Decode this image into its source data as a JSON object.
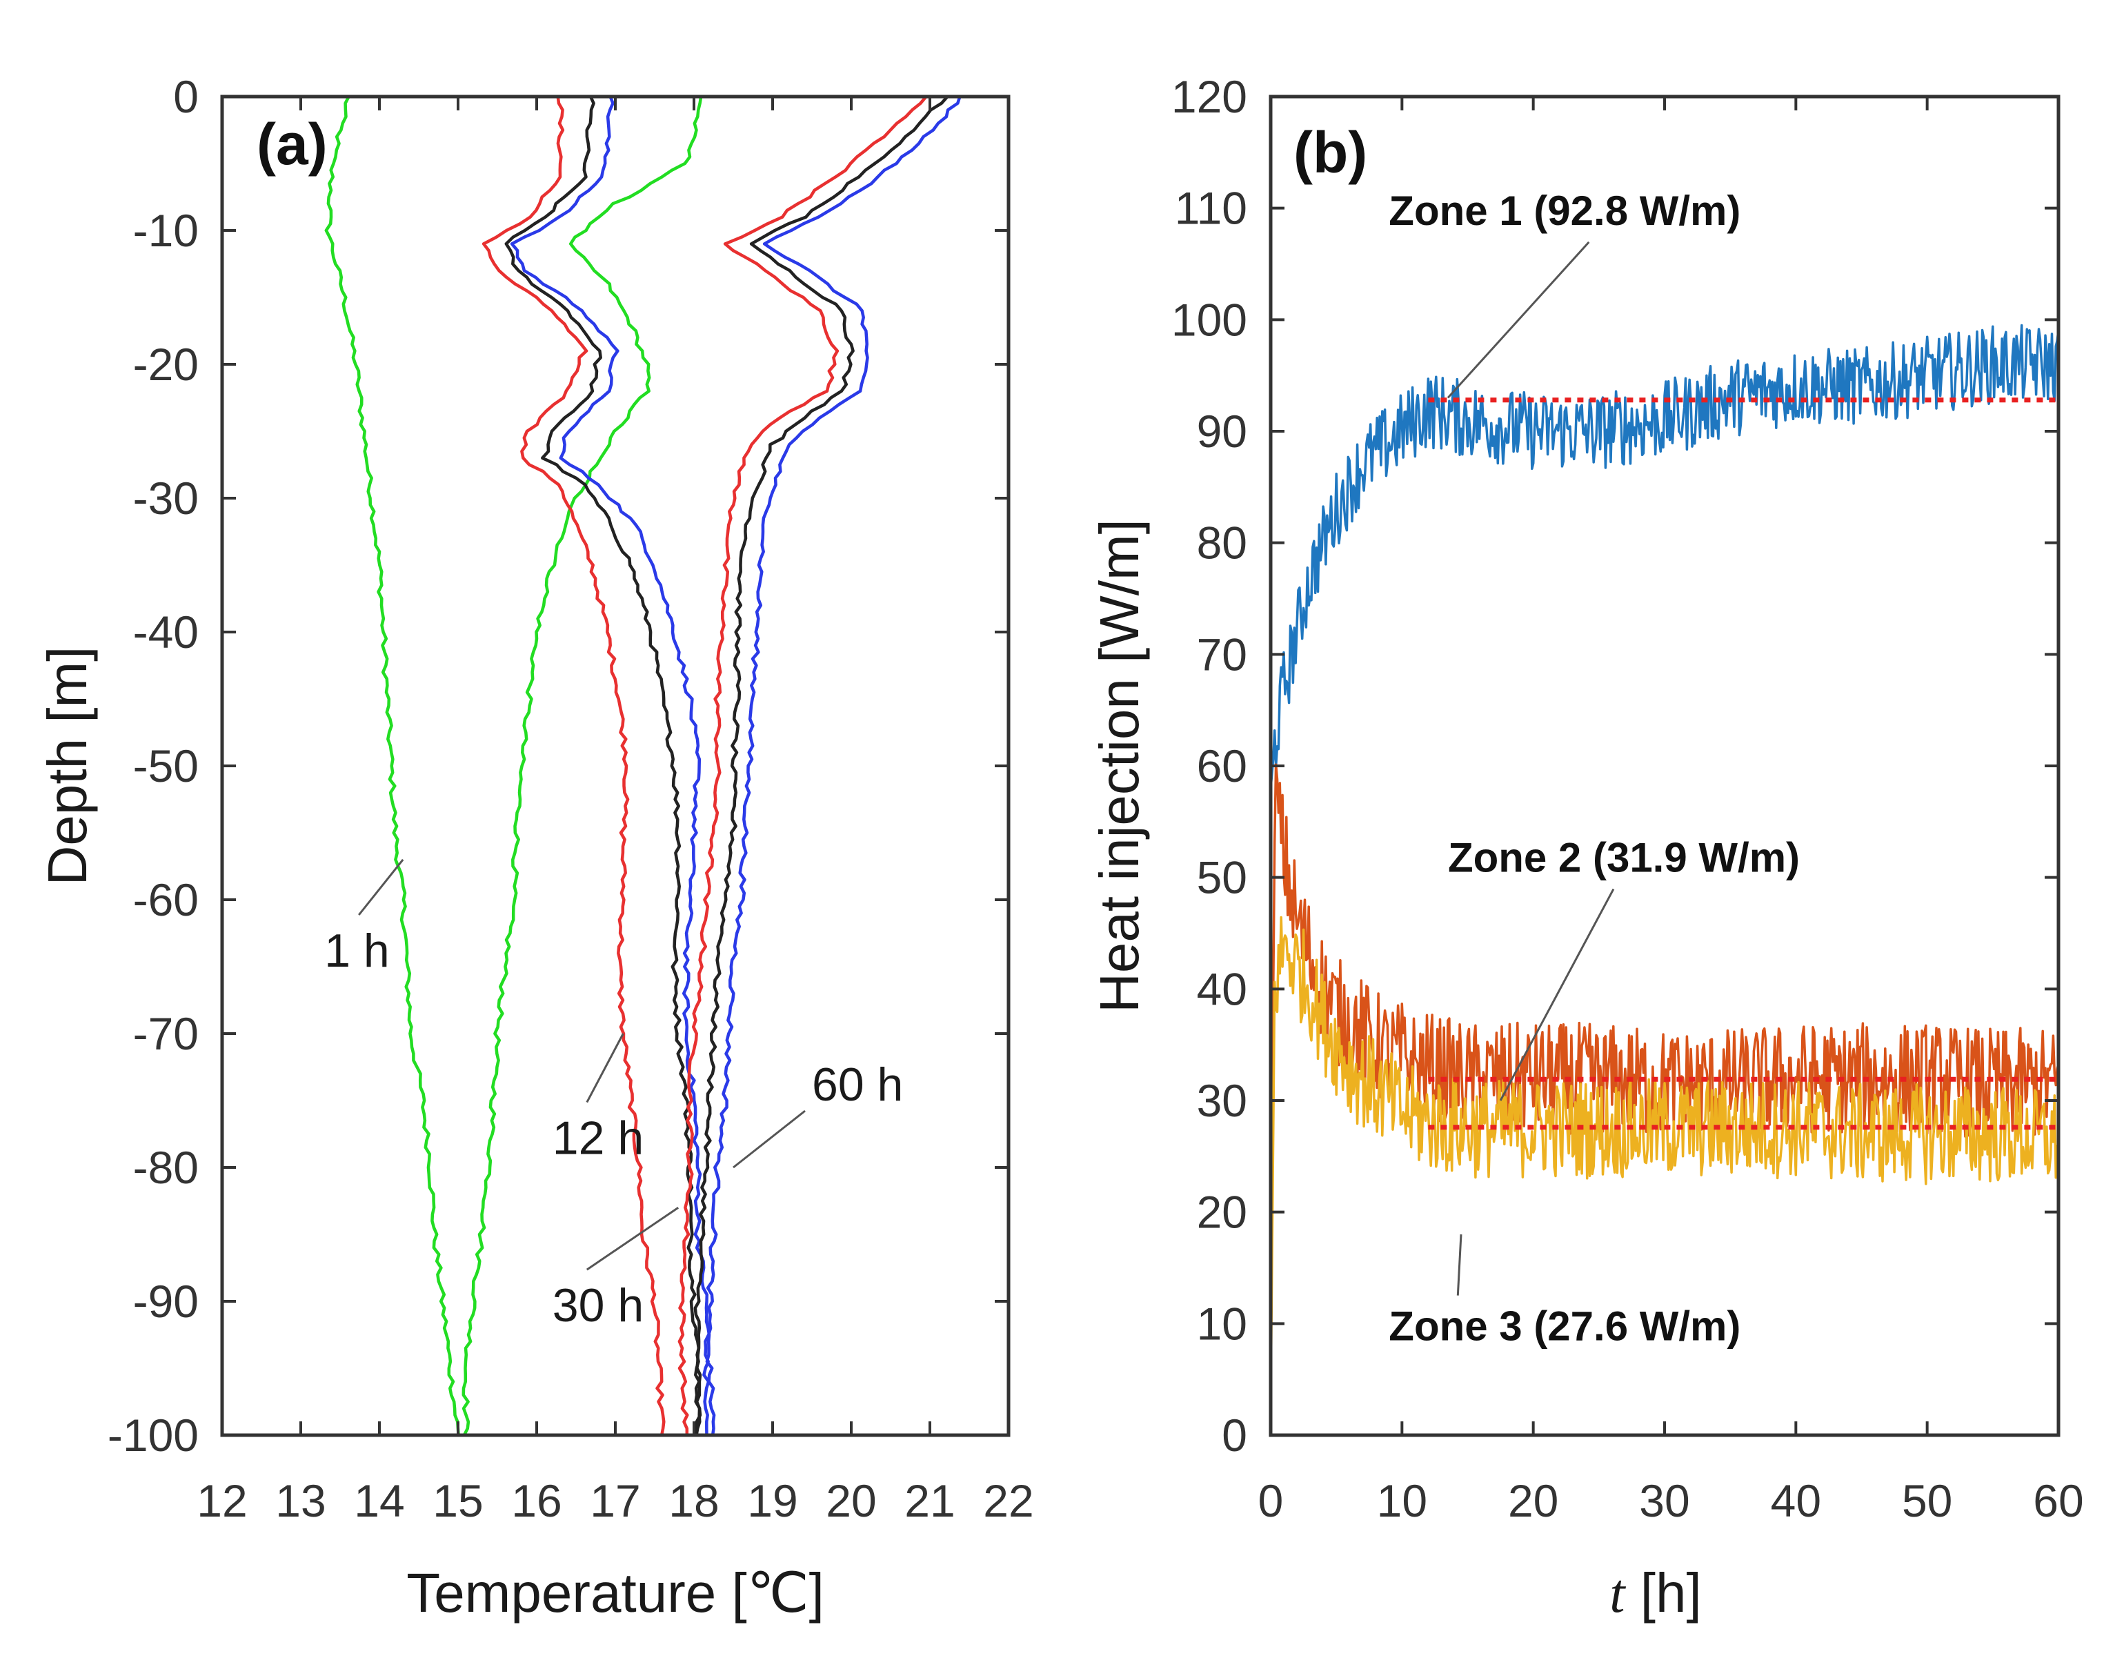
{
  "chart_data": [
    {
      "type": "line",
      "panel_label": "(a)",
      "xlabel": "Temperature [℃]",
      "ylabel": "Depth [m]",
      "xlim": [
        12,
        22
      ],
      "ylim": [
        -100,
        0
      ],
      "xticks": [
        "12",
        "13",
        "14",
        "15",
        "16",
        "17",
        "18",
        "19",
        "20",
        "21",
        "22"
      ],
      "yticks": [
        "0",
        "-10",
        "-20",
        "-30",
        "-40",
        "-50",
        "-60",
        "-70",
        "-80",
        "-90",
        "-100"
      ],
      "grid": false,
      "series": [
        {
          "color": "#22dd22",
          "depth": [
            0,
            -5,
            -10,
            -15,
            -20,
            -25,
            -30,
            -35,
            -40,
            -45,
            -50,
            -55,
            -60,
            -65,
            -70,
            -75,
            -80,
            -85,
            -90,
            -95,
            -100
          ],
          "temp": [
            13.6,
            13.4,
            13.35,
            13.55,
            13.7,
            13.8,
            13.9,
            14.0,
            14.05,
            14.1,
            14.15,
            14.2,
            14.3,
            14.35,
            14.4,
            14.55,
            14.65,
            14.7,
            14.8,
            14.9,
            15.0
          ]
        },
        {
          "color": "#22dd22",
          "depth": [
            0,
            -5,
            -8,
            -11,
            -14,
            -17,
            -20,
            -22,
            -25,
            -28,
            -30,
            -35,
            -40,
            -45,
            -50,
            -55,
            -60,
            -65,
            -70,
            -75,
            -80,
            -85,
            -90,
            -95,
            -100
          ],
          "temp": [
            18.1,
            17.9,
            17.0,
            16.4,
            16.9,
            17.2,
            17.4,
            17.4,
            17.0,
            16.7,
            16.5,
            16.2,
            16.0,
            15.9,
            15.8,
            15.75,
            15.7,
            15.6,
            15.5,
            15.45,
            15.4,
            15.3,
            15.2,
            15.1,
            15.1
          ]
        },
        {
          "color": "#e83030",
          "depth": [
            0,
            -3,
            -6,
            -9,
            -11,
            -13,
            -16,
            -19,
            -22,
            -25,
            -27,
            -29,
            -32,
            -35,
            -40,
            -45,
            -50,
            -55,
            -60,
            -65,
            -70,
            -75,
            -80,
            -85,
            -90,
            -95,
            -100
          ],
          "temp": [
            16.3,
            16.3,
            16.3,
            15.9,
            15.35,
            15.5,
            16.2,
            16.6,
            16.4,
            15.9,
            15.8,
            16.3,
            16.5,
            16.7,
            16.9,
            17.05,
            17.15,
            17.1,
            17.1,
            17.05,
            17.1,
            17.2,
            17.3,
            17.35,
            17.5,
            17.55,
            17.6
          ]
        },
        {
          "color": "#222222",
          "depth": [
            0,
            -3,
            -6,
            -9,
            -11,
            -13,
            -16,
            -19,
            -22,
            -25,
            -27,
            -29,
            -32,
            -35,
            -40,
            -45,
            -50,
            -55,
            -60,
            -65,
            -70,
            -75,
            -80,
            -85,
            -90,
            -95,
            -100
          ],
          "temp": [
            16.7,
            16.65,
            16.6,
            16.1,
            15.6,
            15.75,
            16.4,
            16.8,
            16.7,
            16.2,
            16.1,
            16.6,
            16.95,
            17.2,
            17.45,
            17.6,
            17.75,
            17.8,
            17.8,
            17.75,
            17.8,
            17.9,
            17.95,
            17.95,
            18.0,
            18.05,
            18.05
          ]
        },
        {
          "color": "#2a3ae8",
          "depth": [
            0,
            -3,
            -6,
            -9,
            -11,
            -13,
            -16,
            -19,
            -22,
            -25,
            -27,
            -29,
            -32,
            -35,
            -40,
            -45,
            -50,
            -55,
            -60,
            -65,
            -70,
            -75,
            -80,
            -85,
            -90,
            -95,
            -100
          ],
          "temp": [
            16.95,
            16.9,
            16.85,
            16.3,
            15.7,
            15.85,
            16.6,
            17.0,
            16.9,
            16.4,
            16.3,
            16.8,
            17.25,
            17.5,
            17.75,
            17.95,
            18.05,
            18.0,
            17.95,
            17.9,
            17.9,
            18.0,
            18.05,
            18.05,
            18.15,
            18.2,
            18.25
          ]
        },
        {
          "color": "#e83030",
          "depth": [
            0,
            -3,
            -6,
            -9,
            -11,
            -13,
            -16,
            -19,
            -22,
            -24,
            -26,
            -30,
            -35,
            -40,
            -45,
            -50,
            -55,
            -60,
            -65,
            -70,
            -75,
            -80,
            -85,
            -90,
            -95,
            -100
          ],
          "temp": [
            20.95,
            20.4,
            19.8,
            19.1,
            18.4,
            18.9,
            19.6,
            19.8,
            19.7,
            19.1,
            18.7,
            18.5,
            18.4,
            18.35,
            18.3,
            18.3,
            18.25,
            18.15,
            18.1,
            18.0,
            17.95,
            17.95,
            17.9,
            17.85,
            17.85,
            17.9
          ]
        },
        {
          "color": "#222222",
          "depth": [
            0,
            -3,
            -6,
            -9,
            -11,
            -13,
            -16,
            -19,
            -22,
            -24,
            -26,
            -30,
            -35,
            -40,
            -45,
            -50,
            -55,
            -60,
            -65,
            -70,
            -75,
            -80,
            -85,
            -90,
            -95,
            -100
          ],
          "temp": [
            21.2,
            20.7,
            20.1,
            19.4,
            18.7,
            19.2,
            19.9,
            20.0,
            19.9,
            19.4,
            19.0,
            18.75,
            18.6,
            18.55,
            18.55,
            18.5,
            18.5,
            18.4,
            18.3,
            18.25,
            18.2,
            18.15,
            18.1,
            18.05,
            18.05,
            18.05
          ]
        },
        {
          "color": "#2a3ae8",
          "depth": [
            0,
            -3,
            -6,
            -9,
            -11,
            -13,
            -16,
            -19,
            -22,
            -24,
            -26,
            -30,
            -35,
            -40,
            -45,
            -50,
            -55,
            -60,
            -65,
            -70,
            -75,
            -80,
            -85,
            -90,
            -95,
            -100
          ],
          "temp": [
            21.4,
            20.95,
            20.35,
            19.6,
            18.9,
            19.45,
            20.15,
            20.2,
            20.1,
            19.6,
            19.2,
            18.95,
            18.85,
            18.8,
            18.75,
            18.7,
            18.65,
            18.6,
            18.5,
            18.45,
            18.4,
            18.3,
            18.25,
            18.2,
            18.15,
            18.15
          ]
        }
      ],
      "annotations": [
        {
          "text": "1 h",
          "x": 13.3,
          "y": -65,
          "tip": [
            14.3,
            -57
          ]
        },
        {
          "text": "12 h",
          "x": 16.2,
          "y": -79,
          "tip": [
            17.1,
            -70
          ]
        },
        {
          "text": "30 h",
          "x": 16.2,
          "y": -91.5,
          "tip": [
            17.8,
            -83
          ]
        },
        {
          "text": "60 h",
          "x": 19.5,
          "y": -75,
          "tip": [
            18.5,
            -80
          ]
        }
      ]
    },
    {
      "type": "line",
      "panel_label": "(b)",
      "xlabel_italic": "t",
      "xlabel_unit": " [h]",
      "ylabel": "Heat injection [W/m]",
      "xlim": [
        0,
        60
      ],
      "ylim": [
        0,
        120
      ],
      "xticks": [
        "0",
        "10",
        "20",
        "30",
        "40",
        "50",
        "60"
      ],
      "yticks": [
        "0",
        "10",
        "20",
        "30",
        "40",
        "50",
        "60",
        "70",
        "80",
        "90",
        "100",
        "110",
        "120"
      ],
      "grid": false,
      "series": [
        {
          "name": "Zone 1",
          "color": "#1f77c0",
          "mean": 92.8,
          "t": [
            0,
            0.3,
            1,
            2,
            3,
            4,
            5,
            6,
            7,
            8,
            9,
            10,
            11,
            12,
            15,
            20,
            25,
            30,
            35,
            40,
            45,
            50,
            55,
            60
          ],
          "q": [
            58,
            62,
            67,
            72,
            77,
            80,
            83,
            85,
            87,
            88,
            89,
            90,
            91,
            92,
            91,
            90,
            90,
            91,
            93,
            94,
            94,
            95,
            96,
            96
          ],
          "noise": 3.5
        },
        {
          "name": "Zone 2",
          "color": "#d95319",
          "mean": 31.9,
          "t": [
            0,
            0.3,
            1,
            2,
            3,
            4,
            5,
            6,
            7,
            8,
            9,
            10,
            11,
            12,
            15,
            20,
            25,
            30,
            35,
            40,
            45,
            50,
            55,
            60
          ],
          "q": [
            5,
            58,
            52,
            46,
            43,
            40,
            38,
            37,
            36,
            35,
            34,
            34,
            33,
            33,
            32,
            32,
            32,
            31.5,
            31.5,
            32,
            32,
            32,
            31.5,
            31.5
          ],
          "noise": 5
        },
        {
          "name": "Zone 3",
          "color": "#edb120",
          "mean": 27.6,
          "t": [
            0,
            0.3,
            1,
            2,
            3,
            4,
            5,
            6,
            7,
            8,
            9,
            10,
            11,
            12,
            15,
            20,
            25,
            30,
            35,
            40,
            45,
            50,
            55,
            60
          ],
          "q": [
            3,
            40,
            44,
            42,
            40,
            37,
            35,
            33,
            32,
            31,
            30,
            29,
            28.5,
            28,
            27.5,
            27.5,
            27.5,
            27.5,
            27.5,
            27.5,
            27,
            27,
            27,
            26.5
          ],
          "noise": 4.5
        }
      ],
      "reference_lines": [
        {
          "value": 92.8,
          "t_start": 12,
          "t_end": 60,
          "color": "#e82020"
        },
        {
          "value": 31.9,
          "t_start": 12,
          "t_end": 60,
          "color": "#e82020"
        },
        {
          "value": 27.6,
          "t_start": 12,
          "t_end": 60,
          "color": "#e82020"
        }
      ],
      "annotations": [
        {
          "text": "Zone 1 (92.8 W/m)",
          "x": 9.0,
          "y": 108.5,
          "tip": [
            13.5,
            93
          ]
        },
        {
          "text": "Zone 2 (31.9 W/m)",
          "x": 13.5,
          "y": 50.5,
          "tip": [
            17.5,
            30
          ]
        },
        {
          "text": "Zone 3 (27.6 W/m)",
          "x": 9.0,
          "y": 8.5,
          "tip": [
            14.5,
            18
          ]
        }
      ]
    }
  ]
}
